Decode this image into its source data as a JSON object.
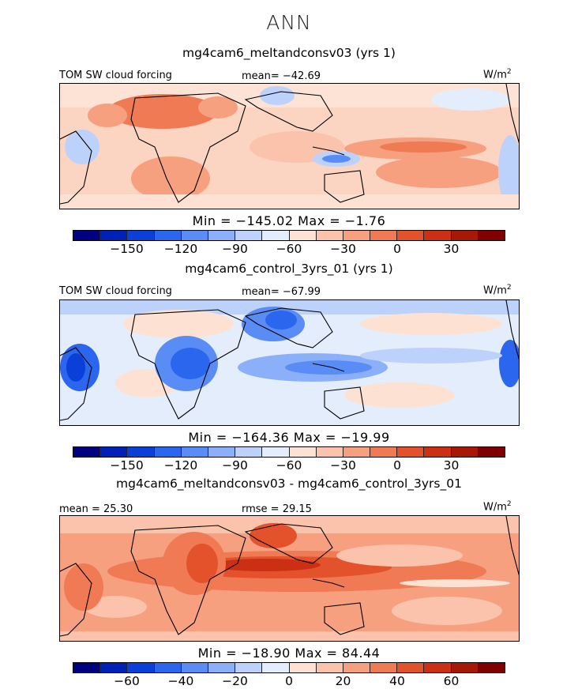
{
  "figure": {
    "title": "ANN",
    "units_base": "W/m",
    "units_sup": "2"
  },
  "panels": [
    {
      "title": "mg4cam6_meltandconsv03 (yrs 1)",
      "left_label": "TOM SW cloud forcing",
      "center_label": "mean= -42.69",
      "min_max": "Min = -145.02 Max = -1.76",
      "ticks": [
        "-150",
        "-120",
        "-90",
        "-60",
        "-30",
        "0",
        "30"
      ],
      "scheme": "warm",
      "mean_value": -42.69,
      "min_value": -145.02,
      "max_value": -1.76
    },
    {
      "title": "mg4cam6_control_3yrs_01 (yrs 1)",
      "left_label": "TOM SW cloud forcing",
      "center_label": "mean= -67.99",
      "min_max": "Min = -164.36 Max = -19.99",
      "ticks": [
        "-150",
        "-120",
        "-90",
        "-60",
        "-30",
        "0",
        "30"
      ],
      "scheme": "cool",
      "mean_value": -67.99,
      "min_value": -164.36,
      "max_value": -19.99
    },
    {
      "title": "mg4cam6_meltandconsv03 - mg4cam6_control_3yrs_01",
      "left_label": "mean =  25.30",
      "center_label": "rmse =  29.15",
      "min_max": "Min = -18.90 Max =  84.44",
      "ticks": [
        "-60",
        "-40",
        "-20",
        "0",
        "20",
        "40",
        "60"
      ],
      "scheme": "diff",
      "mean_value": 25.3,
      "rmse_value": 29.15,
      "min_value": -18.9,
      "max_value": 84.44
    }
  ],
  "colorbar": {
    "colors": [
      "#000080",
      "#0020b8",
      "#0a40d8",
      "#2a66ee",
      "#5a8cf6",
      "#8caffa",
      "#bcd2fb",
      "#e4edfb",
      "#fde2d4",
      "#fbc3ab",
      "#f6a07f",
      "#ef7a54",
      "#e4522c",
      "#cc3014",
      "#a81806",
      "#7e0000"
    ]
  }
}
